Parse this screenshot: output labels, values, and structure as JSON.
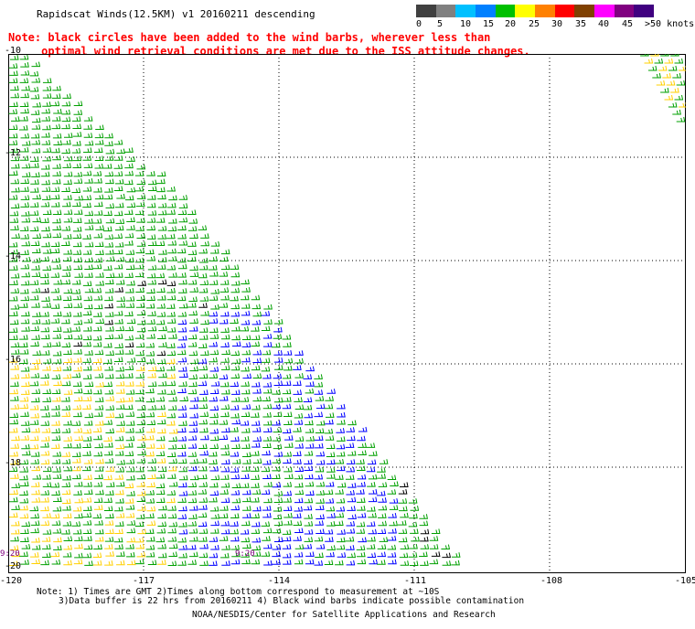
{
  "header": {
    "title": "Rapidscat Winds(12.5KM) v1 20160211 descending",
    "note_line1": "Note: black circles have been added to the wind barbs, wherever less than",
    "note_line2": "     optimal wind retrieval conditions are met due to the ISS attitude changes."
  },
  "legend": {
    "unit": ">50 knots",
    "labels": [
      "0",
      "5",
      "10",
      "15",
      "20",
      "25",
      "30",
      "35",
      "40",
      "45"
    ],
    "colors": [
      "#404040",
      "#808080",
      "#00c0ff",
      "#0080ff",
      "#00c000",
      "#ffff00",
      "#ff8000",
      "#ff0000",
      "#804000",
      "#ff00ff",
      "#800080",
      "#400080"
    ]
  },
  "map": {
    "lat_labels": [
      "-10",
      "-12",
      "-14",
      "-16",
      "-18",
      "-20"
    ],
    "lon_labels": [
      "-120",
      "-117",
      "-114",
      "-111",
      "-108",
      "-105"
    ],
    "time_labels": [
      "9:20",
      "9:20"
    ],
    "grid_color": "#000000"
  },
  "footer": {
    "line1": "Note: 1) Times are GMT 2)Times along bottom correspond to measurement at ~10S",
    "line2": "3)Data buffer is 22 hrs from 20160211 4) Black wind barbs indicate possible contamination",
    "line3": "NOAA/NESDIS/Center for Satellite Applications and Research"
  }
}
